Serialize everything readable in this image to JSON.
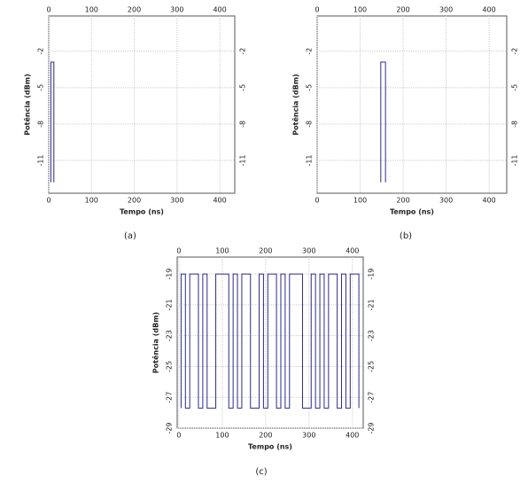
{
  "chart_data": [
    {
      "type": "line",
      "caption": "(a)",
      "xlabel": "Tempo (ns)",
      "ylabel": "Potência (dBm)",
      "xlim": [
        0,
        435
      ],
      "xticks": [
        0,
        100,
        200,
        300,
        400
      ],
      "ylim": [
        -13.7,
        0.9
      ],
      "yticks": [
        -2,
        -5,
        -8,
        -11
      ],
      "grid": true,
      "series": [
        {
          "color": "#2b2b8c",
          "x": [
            5,
            5,
            12,
            12
          ],
          "values": [
            -12.8,
            -2.9,
            -2.9,
            -12.8
          ]
        }
      ]
    },
    {
      "type": "line",
      "caption": "(b)",
      "xlabel": "Tempo (ns)",
      "ylabel": "Potência (dBm)",
      "xlim": [
        0,
        441
      ],
      "xticks": [
        0,
        100,
        200,
        300,
        400
      ],
      "ylim": [
        -13.7,
        0.9
      ],
      "yticks": [
        -2,
        -5,
        -8,
        -11
      ],
      "grid": true,
      "series": [
        {
          "color": "#2b2b8c",
          "x": [
            148,
            148,
            159,
            159
          ],
          "values": [
            -12.8,
            -2.9,
            -2.9,
            -12.8
          ]
        }
      ]
    },
    {
      "type": "line",
      "caption": "(c)",
      "xlabel": "Tempo (ns)",
      "ylabel": "Potência (dBm)",
      "xlim": [
        -4,
        425
      ],
      "xticks": [
        0,
        100,
        200,
        300,
        400
      ],
      "ylim": [
        -29,
        -17.9
      ],
      "yticks": [
        -19,
        -21,
        -23,
        -25,
        -27,
        -29
      ],
      "grid": true,
      "series": [
        {
          "color": "#2b2b8c",
          "x": [
            5,
            5,
            15,
            15,
            25,
            25,
            45,
            45,
            55,
            55,
            65,
            65,
            85,
            85,
            115,
            115,
            125,
            125,
            135,
            135,
            145,
            145,
            165,
            165,
            185,
            185,
            195,
            195,
            205,
            205,
            225,
            225,
            235,
            235,
            245,
            245,
            255,
            255,
            285,
            285,
            305,
            305,
            315,
            315,
            325,
            325,
            335,
            335,
            345,
            345,
            365,
            365,
            375,
            375,
            385,
            385,
            395,
            395,
            415,
            415
          ],
          "values": [
            -27.7,
            -19,
            -19,
            -27.7,
            -27.7,
            -19,
            -19,
            -27.7,
            -27.7,
            -19,
            -19,
            -27.7,
            -27.7,
            -19,
            -19,
            -27.7,
            -27.7,
            -19,
            -19,
            -27.7,
            -27.7,
            -19,
            -19,
            -27.7,
            -27.7,
            -19,
            -19,
            -27.7,
            -27.7,
            -19,
            -19,
            -27.7,
            -27.7,
            -19,
            -19,
            -27.7,
            -27.7,
            -19,
            -19,
            -27.7,
            -27.7,
            -19,
            -19,
            -27.7,
            -27.7,
            -19,
            -19,
            -27.7,
            -27.7,
            -19,
            -19,
            -27.7,
            -27.7,
            -19,
            -19,
            -27.7,
            -27.7,
            -19,
            -19,
            -27.7
          ]
        }
      ]
    }
  ]
}
